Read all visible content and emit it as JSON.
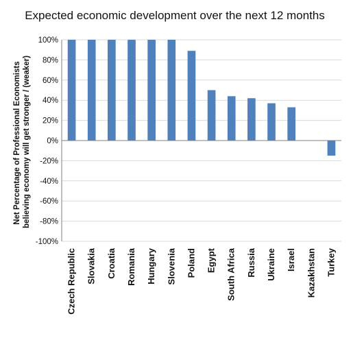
{
  "chart_data": {
    "type": "bar",
    "title": "Expected economic development over the next 12 months",
    "ylabel": [
      "Net Percentage of Professional Economists",
      "believing economy will get stronger / (weaker)"
    ],
    "xlabel": "",
    "ylim": [
      -100,
      100
    ],
    "yticks": [
      -100,
      -80,
      -60,
      -40,
      -20,
      0,
      20,
      40,
      60,
      80,
      100
    ],
    "ytick_format": "percent",
    "grid": true,
    "legend": "none",
    "bar_color": "#4f81bd",
    "categories": [
      "Czech Republic",
      "Slovakia",
      "Croatia",
      "Romania",
      "Hungary",
      "Slovenia",
      "Poland",
      "Egypt",
      "South Africa",
      "Russia",
      "Ukraine",
      "Israel",
      "Kazakhstan",
      "Turkey"
    ],
    "values": [
      100,
      100,
      100,
      100,
      100,
      100,
      89,
      50,
      44,
      42,
      37,
      33,
      0,
      -15
    ]
  }
}
